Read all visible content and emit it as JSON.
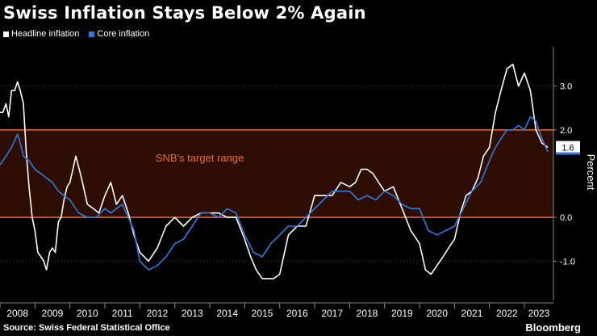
{
  "title": "Swiss Inflation Stays Below 2% Again",
  "source": "Source: Swiss Federal Statistical Office",
  "brand": "Bloomberg",
  "colors": {
    "background": "#000000",
    "headline": "#ffffff",
    "core": "#2e7be0",
    "target_line": "#f26a21",
    "target_fill": "#2e0d03",
    "grid": "#3a3a3a",
    "axis_text": "#ffffff"
  },
  "chart_data": {
    "type": "line",
    "title": "Swiss Inflation Stays Below 2% Again",
    "ylabel": "Percent",
    "xlabel": "",
    "ylim": [
      -1.9,
      3.9
    ],
    "yticks": [
      3.0,
      2.0,
      0.0,
      -1.0
    ],
    "ytick_labels": [
      "3.0",
      "2.0",
      "0.0",
      "-1.0"
    ],
    "xlim": [
      2008.0,
      2023.83
    ],
    "x_tick_labels": [
      "2008",
      "2009",
      "2010",
      "2011",
      "2012",
      "2013",
      "2014",
      "2015",
      "2016",
      "2017",
      "2018",
      "2019",
      "2020",
      "2021",
      "2022",
      "2023"
    ],
    "legend": [
      {
        "name": "Headline inflation",
        "color": "#ffffff"
      },
      {
        "name": "Core inflation",
        "color": "#2e7be0"
      }
    ],
    "annotation": "SNB's target range",
    "target_range": [
      0.0,
      2.0
    ],
    "last_value_label": "1.6",
    "series": [
      {
        "name": "Headline inflation",
        "x": [
          2008.0,
          2008.08,
          2008.17,
          2008.25,
          2008.33,
          2008.42,
          2008.5,
          2008.58,
          2008.67,
          2008.75,
          2008.83,
          2008.92,
          2009.0,
          2009.08,
          2009.17,
          2009.25,
          2009.33,
          2009.42,
          2009.5,
          2009.58,
          2009.67,
          2009.75,
          2009.83,
          2009.92,
          2010.0,
          2010.17,
          2010.33,
          2010.5,
          2010.67,
          2010.83,
          2011.0,
          2011.17,
          2011.33,
          2011.5,
          2011.67,
          2011.83,
          2012.0,
          2012.25,
          2012.5,
          2012.75,
          2013.0,
          2013.25,
          2013.5,
          2013.75,
          2014.0,
          2014.25,
          2014.5,
          2014.75,
          2015.0,
          2015.17,
          2015.33,
          2015.5,
          2015.67,
          2015.83,
          2016.0,
          2016.25,
          2016.5,
          2016.75,
          2017.0,
          2017.25,
          2017.5,
          2017.75,
          2018.0,
          2018.17,
          2018.33,
          2018.5,
          2018.67,
          2018.83,
          2019.0,
          2019.25,
          2019.5,
          2019.75,
          2020.0,
          2020.17,
          2020.33,
          2020.5,
          2020.67,
          2020.83,
          2021.0,
          2021.17,
          2021.33,
          2021.5,
          2021.67,
          2021.83,
          2022.0,
          2022.17,
          2022.33,
          2022.5,
          2022.67,
          2022.83,
          2023.0,
          2023.17,
          2023.33,
          2023.5,
          2023.67
        ],
        "values": [
          2.4,
          2.4,
          2.6,
          2.3,
          2.9,
          2.9,
          3.1,
          2.9,
          2.6,
          1.5,
          0.7,
          0.0,
          -0.3,
          -0.8,
          -0.9,
          -1.0,
          -1.2,
          -0.8,
          -0.7,
          -0.8,
          -0.1,
          0.0,
          0.4,
          0.7,
          0.8,
          1.4,
          0.9,
          0.3,
          0.2,
          0.1,
          0.5,
          0.8,
          0.3,
          0.5,
          0.1,
          -0.4,
          -0.8,
          -1.0,
          -0.7,
          -0.2,
          0.0,
          -0.2,
          0.0,
          0.1,
          0.1,
          0.1,
          0.0,
          0.0,
          -0.5,
          -0.9,
          -1.2,
          -1.4,
          -1.4,
          -1.4,
          -1.3,
          -0.4,
          -0.2,
          -0.2,
          0.5,
          0.5,
          0.5,
          0.8,
          0.7,
          0.8,
          1.1,
          1.1,
          1.0,
          0.8,
          0.6,
          0.7,
          0.2,
          -0.3,
          -0.6,
          -1.2,
          -1.3,
          -1.1,
          -0.9,
          -0.7,
          -0.5,
          0.1,
          0.5,
          0.6,
          0.9,
          1.4,
          1.6,
          2.4,
          2.9,
          3.4,
          3.5,
          3.0,
          3.3,
          2.9,
          2.0,
          1.7,
          1.6
        ]
      },
      {
        "name": "Core inflation",
        "x": [
          2008.0,
          2008.17,
          2008.33,
          2008.5,
          2008.58,
          2008.67,
          2008.83,
          2009.0,
          2009.17,
          2009.33,
          2009.5,
          2009.67,
          2009.83,
          2010.0,
          2010.25,
          2010.5,
          2010.75,
          2011.0,
          2011.17,
          2011.33,
          2011.5,
          2011.67,
          2011.83,
          2012.0,
          2012.25,
          2012.5,
          2012.75,
          2013.0,
          2013.25,
          2013.5,
          2013.75,
          2014.0,
          2014.25,
          2014.5,
          2014.75,
          2015.0,
          2015.25,
          2015.5,
          2015.75,
          2016.0,
          2016.25,
          2016.5,
          2016.75,
          2017.0,
          2017.25,
          2017.5,
          2017.75,
          2018.0,
          2018.25,
          2018.5,
          2018.75,
          2019.0,
          2019.25,
          2019.5,
          2019.75,
          2020.0,
          2020.25,
          2020.5,
          2020.75,
          2021.0,
          2021.25,
          2021.5,
          2021.75,
          2022.0,
          2022.17,
          2022.33,
          2022.5,
          2022.67,
          2022.83,
          2023.0,
          2023.17,
          2023.33,
          2023.5,
          2023.67
        ],
        "values": [
          1.2,
          1.4,
          1.6,
          1.9,
          1.7,
          1.4,
          1.3,
          1.1,
          1.0,
          0.9,
          0.8,
          0.6,
          0.5,
          0.4,
          0.1,
          0.0,
          0.0,
          0.2,
          0.1,
          0.2,
          0.3,
          0.0,
          -0.3,
          -1.0,
          -1.2,
          -1.1,
          -0.9,
          -0.6,
          -0.5,
          -0.2,
          0.1,
          0.1,
          0.0,
          0.2,
          0.1,
          -0.4,
          -0.8,
          -0.9,
          -0.6,
          -0.4,
          -0.2,
          -0.2,
          0.0,
          0.2,
          0.4,
          0.6,
          0.6,
          0.6,
          0.4,
          0.5,
          0.4,
          0.6,
          0.5,
          0.3,
          0.2,
          0.2,
          -0.3,
          -0.4,
          -0.3,
          -0.2,
          0.2,
          0.6,
          0.8,
          1.3,
          1.6,
          1.8,
          2.0,
          2.0,
          2.1,
          2.0,
          2.3,
          2.2,
          1.8,
          1.5
        ]
      }
    ]
  }
}
